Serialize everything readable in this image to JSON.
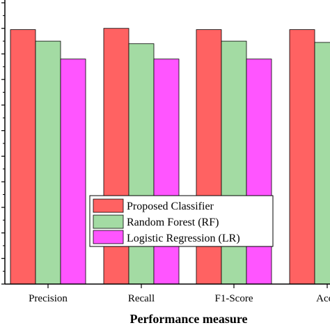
{
  "chart_data": {
    "type": "bar",
    "title": "",
    "xlabel": "Performance measure",
    "ylabel": "",
    "categories": [
      "Precision",
      "Recall",
      "F1-Score",
      "Accu"
    ],
    "series": [
      {
        "name": "Proposed Classifier",
        "color": "#ff6262",
        "values": [
          0.995,
          1.0,
          0.995,
          0.995
        ]
      },
      {
        "name": "Random Forest (RF)",
        "color": "#a3dba3",
        "values": [
          0.95,
          0.94,
          0.95,
          0.945
        ]
      },
      {
        "name": "Logistic Regression (LR)",
        "color": "#ff55ff",
        "values": [
          0.88,
          0.88,
          0.88,
          null
        ]
      }
    ],
    "ylim": [
      0,
      1.1
    ],
    "grid": false,
    "legend_position": "lower-right"
  }
}
